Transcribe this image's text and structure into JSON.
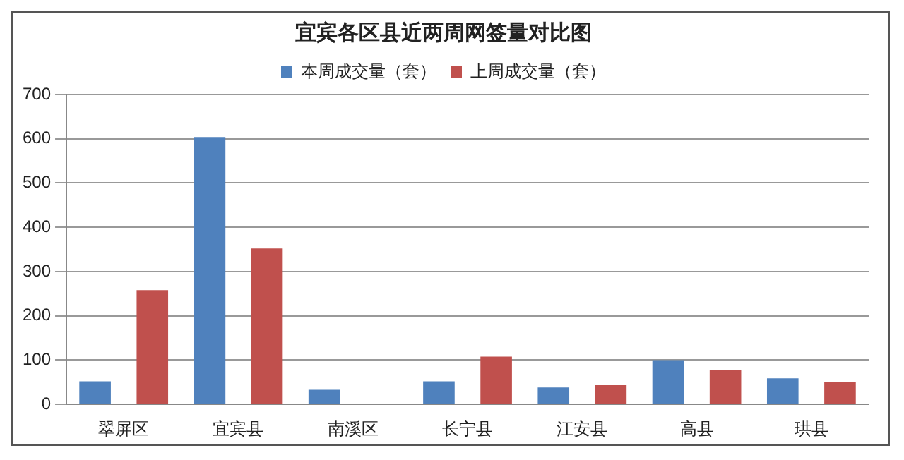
{
  "chart_data": {
    "type": "bar",
    "title": "宜宾各区县近两周网签量对比图",
    "categories": [
      "翠屏区",
      "宜宾县",
      "南溪区",
      "长宁县",
      "江安县",
      "高县",
      "珙县"
    ],
    "series": [
      {
        "name": "本周成交量（套）",
        "color": "#4f81bd",
        "values": [
          52,
          604,
          33,
          52,
          38,
          100,
          59
        ]
      },
      {
        "name": "上周成交量（套）",
        "color": "#c0504d",
        "values": [
          258,
          352,
          0,
          108,
          45,
          77,
          50
        ]
      }
    ],
    "ylim": [
      0,
      700
    ],
    "yticks": [
      0,
      100,
      200,
      300,
      400,
      500,
      600,
      700
    ],
    "grid": "y",
    "legend": "top"
  }
}
